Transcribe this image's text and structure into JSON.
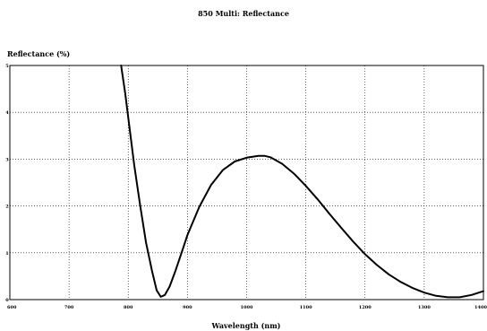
{
  "chart_data": {
    "type": "line",
    "title": "850 Multi: Reflectance",
    "xlabel": "Wavelength (nm)",
    "ylabel": "Reflectance (%)",
    "xlim": [
      600,
      1400
    ],
    "ylim": [
      0,
      5
    ],
    "xticks": [
      600,
      700,
      800,
      900,
      1000,
      1100,
      1200,
      1300,
      1400
    ],
    "xtick_labels": [
      "600",
      "700",
      "800",
      "900",
      "1000",
      "1100",
      "1200",
      "1300",
      "1400"
    ],
    "yticks": [
      0,
      1,
      2,
      3,
      4,
      5
    ],
    "ytick_labels": [
      "0",
      "1",
      "2",
      "3",
      "4",
      "5"
    ],
    "grid": true,
    "legend": "none",
    "series": [
      {
        "color": "#000000",
        "x": [
          788,
          795,
          800,
          810,
          820,
          830,
          840,
          848,
          855,
          862,
          870,
          880,
          890,
          900,
          920,
          940,
          960,
          980,
          1000,
          1020,
          1030,
          1040,
          1060,
          1080,
          1100,
          1120,
          1140,
          1160,
          1180,
          1200,
          1220,
          1240,
          1260,
          1280,
          1300,
          1320,
          1340,
          1360,
          1380,
          1400
        ],
        "y": [
          5.0,
          4.4,
          3.88,
          2.88,
          2.02,
          1.22,
          0.62,
          0.2,
          0.06,
          0.1,
          0.28,
          0.62,
          1.0,
          1.38,
          1.98,
          2.45,
          2.77,
          2.95,
          3.03,
          3.07,
          3.07,
          3.04,
          2.9,
          2.69,
          2.43,
          2.14,
          1.83,
          1.53,
          1.24,
          0.97,
          0.74,
          0.54,
          0.38,
          0.25,
          0.15,
          0.08,
          0.05,
          0.05,
          0.1,
          0.18
        ]
      }
    ]
  }
}
